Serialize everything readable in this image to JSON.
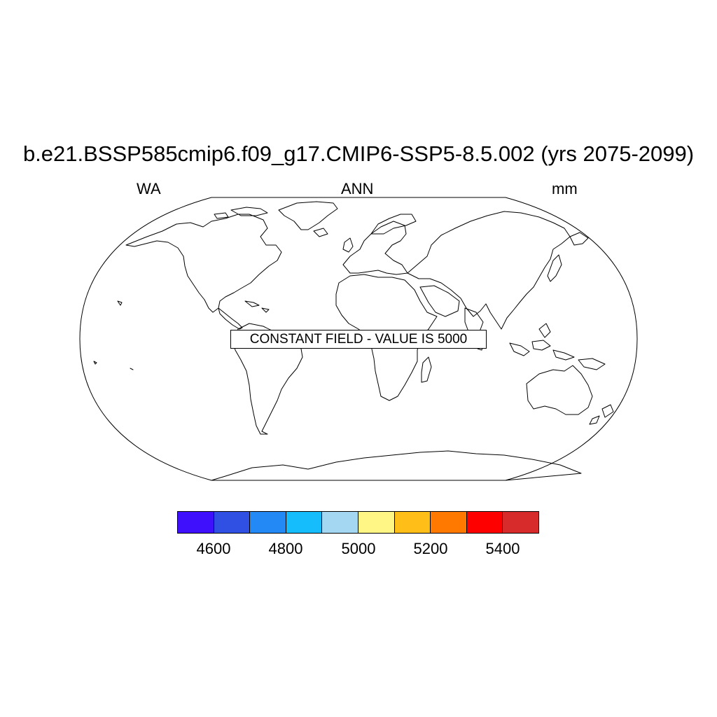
{
  "title": "b.e21.BSSP585cmip6.f09_g17.CMIP6-SSP5-8.5.002 (yrs 2075-2099)",
  "left_label": "WA",
  "center_label": "ANN",
  "right_label": "mm",
  "annotation": "CONSTANT FIELD - VALUE IS 5000",
  "map": {
    "projection": "robinson",
    "outline_color": "#000000",
    "fill_color": "#ffffff"
  },
  "colorbar": {
    "colors": [
      "#3f10fb",
      "#3050e4",
      "#2389f5",
      "#16bdfd",
      "#a4d8f2",
      "#fff685",
      "#ffbf18",
      "#ff7800",
      "#ff0000",
      "#d72a2b"
    ],
    "labels": [
      "4600",
      "4800",
      "5000",
      "5200",
      "5400"
    ]
  }
}
